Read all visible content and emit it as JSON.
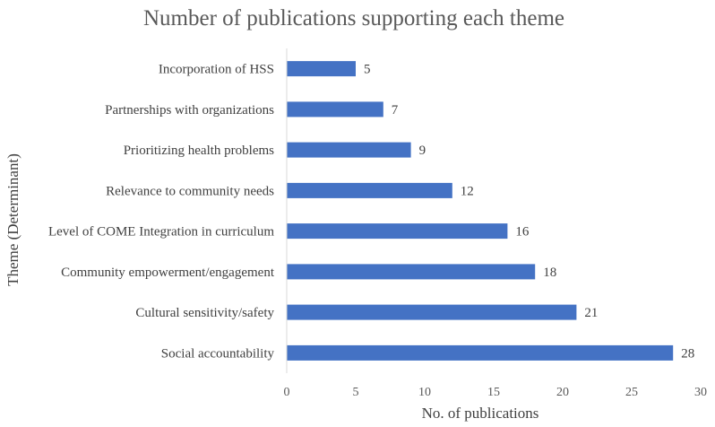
{
  "chart_data": {
    "type": "bar",
    "orientation": "horizontal",
    "title": "Number of publications supporting each theme",
    "xlabel": "No. of publications",
    "ylabel": "Theme (Determinant)",
    "xlim": [
      0,
      30
    ],
    "x_ticks": [
      0,
      5,
      10,
      15,
      20,
      25,
      30
    ],
    "categories": [
      "Incorporation of HSS",
      "Partnerships with organizations",
      "Prioritizing health problems",
      "Relevance to community needs",
      "Level of COME Integration in curriculum",
      "Community empowerment/engagement",
      "Cultural sensitivity/safety",
      "Social accountability"
    ],
    "values": [
      5,
      7,
      9,
      12,
      16,
      18,
      21,
      28
    ],
    "bar_color": "#4472C4",
    "grid": false,
    "legend": "none",
    "data_labels": true
  }
}
